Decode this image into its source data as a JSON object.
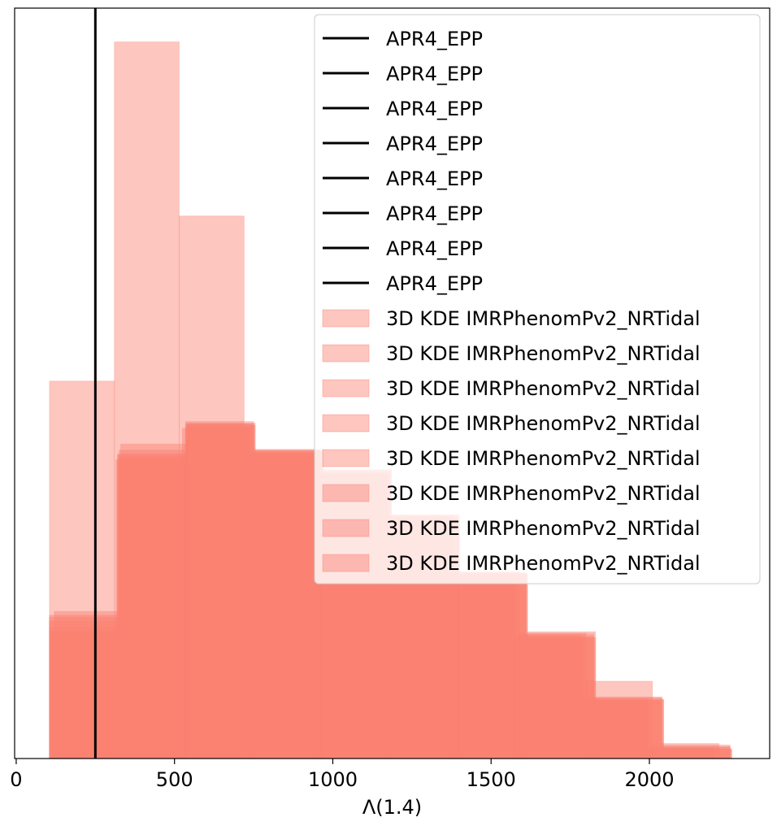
{
  "chart_data": {
    "type": "histogram",
    "title": "",
    "xlabel": "Λ(1.4)",
    "ylabel": "",
    "xlim": [
      -5,
      2380
    ],
    "ylim": [
      0,
      1.0
    ],
    "x_ticks": [
      0,
      500,
      1000,
      1500,
      2000
    ],
    "x_tick_labels": [
      "0",
      "500",
      "1000",
      "1500",
      "2000"
    ],
    "y_ticks": [],
    "grid": false,
    "legend_position": "upper right",
    "colors": {
      "hist_fill": "#fa8072",
      "vline": "#000000"
    },
    "vline": {
      "name": "APR4_EPP",
      "x": 250
    },
    "legend_line_entries": [
      "APR4_EPP",
      "APR4_EPP",
      "APR4_EPP",
      "APR4_EPP",
      "APR4_EPP",
      "APR4_EPP",
      "APR4_EPP",
      "APR4_EPP"
    ],
    "legend_patch_entries": [
      "3D KDE IMRPhenomPv2_NRTidal",
      "3D KDE IMRPhenomPv2_NRTidal",
      "3D KDE IMRPhenomPv2_NRTidal",
      "3D KDE IMRPhenomPv2_NRTidal",
      "3D KDE IMRPhenomPv2_NRTidal",
      "3D KDE IMRPhenomPv2_NRTidal",
      "3D KDE IMRPhenomPv2_NRTidal",
      "3D KDE IMRPhenomPv2_NRTidal"
    ],
    "series": [
      {
        "name": "3D KDE IMRPhenomPv2_NRTidal",
        "alpha": 0.45,
        "edges": [
          105,
          310,
          515,
          720
        ],
        "heights": [
          0.503,
          0.955,
          0.723
        ]
      },
      {
        "name": "3D KDE IMRPhenomPv2_NRTidal",
        "alpha": 0.45,
        "edges": [
          110,
          325,
          540,
          755,
          970,
          1185,
          1400,
          1615,
          1830,
          2045,
          2260
        ],
        "heights": [
          0.17,
          0.411,
          0.447,
          0.412,
          0.385,
          0.325,
          0.247,
          0.161,
          0.079,
          0.012
        ]
      },
      {
        "name": "3D KDE IMRPhenomPv2_NRTidal",
        "alpha": 0.45,
        "edges": [
          105,
          320,
          535,
          750,
          965,
          1180,
          1395,
          1610,
          1825,
          2040,
          2255
        ],
        "heights": [
          0.188,
          0.406,
          0.449,
          0.408,
          0.38,
          0.322,
          0.244,
          0.166,
          0.082,
          0.018
        ]
      },
      {
        "name": "3D KDE IMRPhenomPv2_NRTidal",
        "alpha": 0.45,
        "edges": [
          110,
          325,
          540,
          755,
          970,
          1185,
          1400,
          1615,
          1830,
          2045,
          2260
        ],
        "heights": [
          0.168,
          0.402,
          0.444,
          0.41,
          0.384,
          0.318,
          0.246,
          0.169,
          0.078,
          0.013
        ]
      },
      {
        "name": "3D KDE IMRPhenomPv2_NRTidal",
        "alpha": 0.45,
        "edges": [
          105,
          320,
          535,
          750,
          965,
          1180,
          1395,
          1610,
          1825,
          2040,
          2255
        ],
        "heights": [
          0.183,
          0.404,
          0.442,
          0.407,
          0.378,
          0.32,
          0.248,
          0.163,
          0.076,
          0.015
        ]
      },
      {
        "name": "3D KDE IMRPhenomPv2_NRTidal",
        "alpha": 0.45,
        "edges": [
          105,
          315,
          525,
          735,
          945,
          1155,
          1365,
          1575,
          1785,
          1995,
          2205
        ],
        "heights": [
          0.174,
          0.398,
          0.44,
          0.405,
          0.376,
          0.321,
          0.243,
          0.164,
          0.08,
          0.014
        ]
      },
      {
        "name": "3D KDE IMRPhenomPv2_NRTidal",
        "alpha": 0.45,
        "edges": [
          105,
          320,
          535,
          750,
          965,
          1180,
          1395,
          1610,
          1825,
          2040,
          2255
        ],
        "heights": [
          0.191,
          0.398,
          0.446,
          0.409,
          0.382,
          0.323,
          0.245,
          0.16,
          0.081,
          0.016
        ]
      },
      {
        "name": "3D KDE IMRPhenomPv2_NRTidal",
        "alpha": 0.45,
        "edges": [
          120,
          330,
          540,
          750,
          960,
          1170,
          1380,
          1590,
          1800,
          2010,
          2220
        ],
        "heights": [
          0.196,
          0.419,
          0.445,
          0.411,
          0.379,
          0.324,
          0.249,
          0.167,
          0.103,
          0.02
        ]
      }
    ]
  }
}
